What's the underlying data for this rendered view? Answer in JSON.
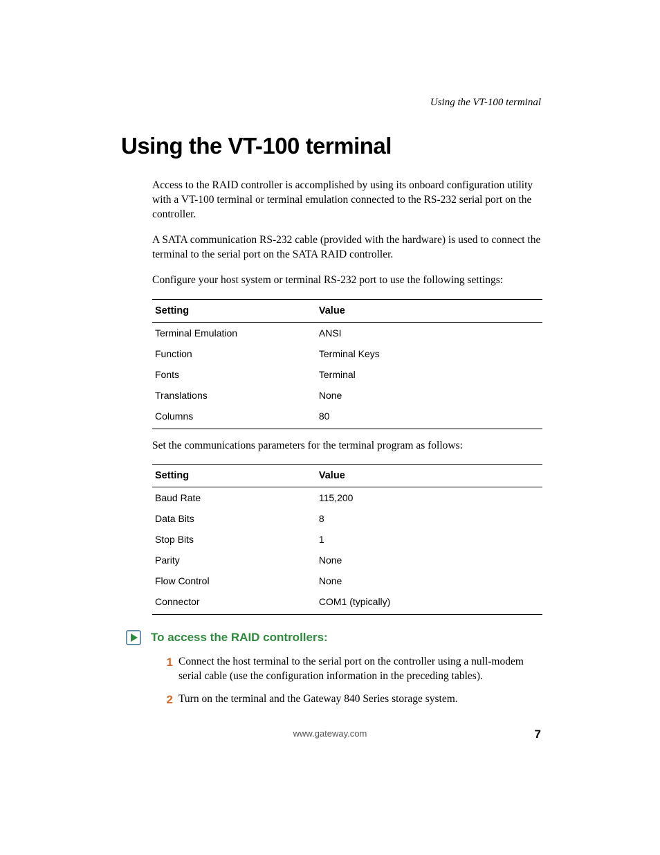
{
  "running_head": "Using the VT-100 terminal",
  "title": "Using the VT-100 terminal",
  "paragraphs": {
    "p1": "Access to the RAID controller is accomplished by using its onboard configuration utility with a VT-100 terminal or terminal emulation connected to the RS-232 serial port on the controller.",
    "p2": "A SATA communication RS-232 cable (provided with the hardware) is used to connect the terminal to the serial port on the SATA RAID controller.",
    "p3": "Configure your host system or terminal RS-232 port to use the following settings:",
    "p4": "Set the communications parameters for the terminal program as follows:"
  },
  "table1": {
    "header_setting": "Setting",
    "header_value": "Value",
    "rows": [
      {
        "setting": "Terminal Emulation",
        "value": "ANSI"
      },
      {
        "setting": "Function",
        "value": "Terminal Keys"
      },
      {
        "setting": "Fonts",
        "value": "Terminal"
      },
      {
        "setting": "Translations",
        "value": "None"
      },
      {
        "setting": "Columns",
        "value": "80"
      }
    ]
  },
  "table2": {
    "header_setting": "Setting",
    "header_value": "Value",
    "rows": [
      {
        "setting": "Baud Rate",
        "value": "115,200"
      },
      {
        "setting": "Data Bits",
        "value": "8"
      },
      {
        "setting": "Stop Bits",
        "value": "1"
      },
      {
        "setting": "Parity",
        "value": "None"
      },
      {
        "setting": "Flow Control",
        "value": "None"
      },
      {
        "setting": "Connector",
        "value": "COM1 (typically)"
      }
    ]
  },
  "procedure": {
    "title": "To access the RAID controllers:",
    "icon_colors": {
      "outline": "#2a6b8f",
      "fill": "#2e8b3d"
    },
    "title_color": "#2e8b3d",
    "step_num_color": "#d46a2a",
    "steps": [
      {
        "num": "1",
        "text": "Connect the host terminal to the serial port on the controller using a null-modem serial cable (use the configuration information in the preceding tables)."
      },
      {
        "num": "2",
        "text": "Turn on the terminal and the Gateway 840 Series storage system."
      }
    ]
  },
  "footer": "www.gateway.com",
  "page_number": "7",
  "colors": {
    "background": "#ffffff",
    "text": "#000000",
    "rule": "#000000"
  },
  "fonts": {
    "heading_family": "Arial, Helvetica, sans-serif",
    "body_family": "Georgia, serif",
    "title_size_pt": 25,
    "body_size_pt": 12,
    "table_size_pt": 10.5
  }
}
